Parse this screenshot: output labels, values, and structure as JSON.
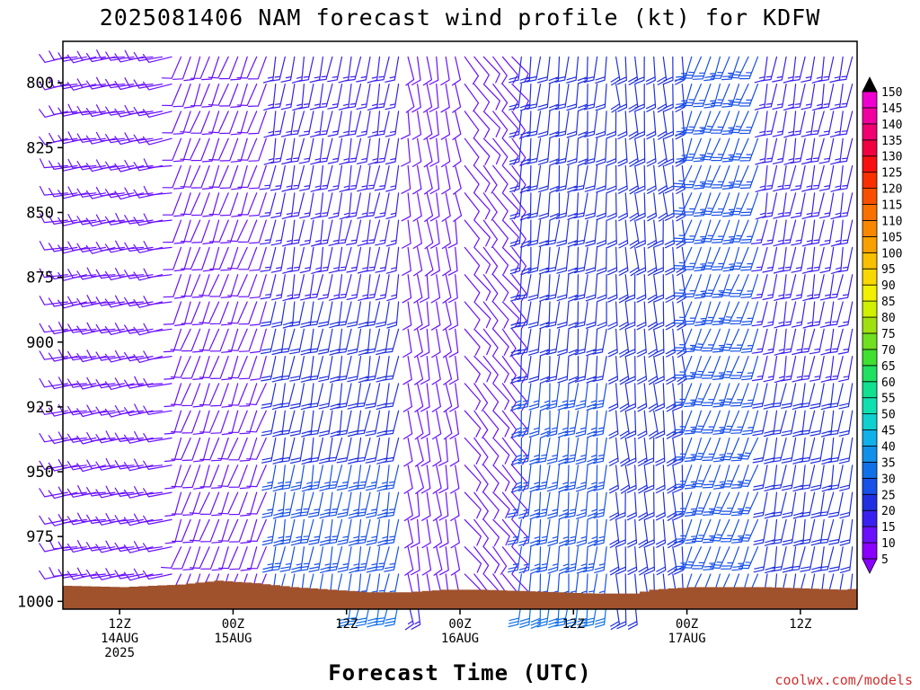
{
  "chart_data": {
    "type": "wind-barb-profile",
    "title": "2025081406 NAM forecast wind profile (kt) for KDFW",
    "xlabel": "Forecast Time (UTC)",
    "credit": "coolwx.com/models",
    "units": "kt",
    "y_axis": {
      "label": "",
      "reversed": true,
      "ticks": [
        800,
        825,
        850,
        875,
        900,
        925,
        950,
        975,
        1000
      ],
      "range": [
        784,
        1003
      ]
    },
    "x_axis": {
      "range_hours": [
        0,
        84
      ],
      "ticks": [
        {
          "hour": 6,
          "labels": [
            "12Z",
            "14AUG",
            "2025"
          ]
        },
        {
          "hour": 18,
          "labels": [
            "00Z",
            "15AUG"
          ]
        },
        {
          "hour": 30,
          "labels": [
            "12Z"
          ]
        },
        {
          "hour": 42,
          "labels": [
            "00Z",
            "16AUG"
          ]
        },
        {
          "hour": 54,
          "labels": [
            "12Z"
          ]
        },
        {
          "hour": 66,
          "labels": [
            "00Z",
            "17AUG"
          ]
        },
        {
          "hour": 78,
          "labels": [
            "12Z"
          ]
        }
      ]
    },
    "colorbar": {
      "levels": [
        5,
        10,
        15,
        20,
        25,
        30,
        35,
        40,
        45,
        50,
        55,
        60,
        65,
        70,
        75,
        80,
        85,
        90,
        95,
        100,
        105,
        110,
        115,
        120,
        125,
        130,
        135,
        140,
        145,
        150
      ],
      "colors": [
        "#8a00ff",
        "#6a10ff",
        "#3a20f0",
        "#2030e0",
        "#1850e8",
        "#1070e8",
        "#1090e8",
        "#10b0e8",
        "#10d0d0",
        "#10e0b0",
        "#10e090",
        "#20e060",
        "#40e030",
        "#70e020",
        "#a0e010",
        "#d0f000",
        "#f0f000",
        "#f8d800",
        "#f8c000",
        "#f8a000",
        "#f88800",
        "#f87000",
        "#f85000",
        "#f83000",
        "#f81010",
        "#f00040",
        "#f00070",
        "#f000a0",
        "#f000d0",
        "#e000ff"
      ],
      "top_color": "#000000"
    },
    "surface_pressure": [
      {
        "hour": 0,
        "p": 994
      },
      {
        "hour": 6,
        "p": 994.5
      },
      {
        "hour": 12,
        "p": 993.5
      },
      {
        "hour": 16,
        "p": 992
      },
      {
        "hour": 20,
        "p": 993
      },
      {
        "hour": 24,
        "p": 994.5
      },
      {
        "hour": 28,
        "p": 995.5
      },
      {
        "hour": 32,
        "p": 996.5
      },
      {
        "hour": 36,
        "p": 996.5
      },
      {
        "hour": 40,
        "p": 995.5
      },
      {
        "hour": 44,
        "p": 995.5
      },
      {
        "hour": 48,
        "p": 996
      },
      {
        "hour": 52,
        "p": 996.5
      },
      {
        "hour": 56,
        "p": 997
      },
      {
        "hour": 60,
        "p": 997
      },
      {
        "hour": 62,
        "p": 995.5
      },
      {
        "hour": 66,
        "p": 994.5
      },
      {
        "hour": 70,
        "p": 994.5
      },
      {
        "hour": 74,
        "p": 994.5
      },
      {
        "hour": 78,
        "p": 995
      },
      {
        "hour": 82,
        "p": 995.5
      },
      {
        "hour": 84,
        "p": 995
      }
    ],
    "wind_regimes": [
      {
        "hour_start": 0,
        "hour_end": 12,
        "dir_deg": 260,
        "speed_low_kt": 15,
        "speed_high_kt": 12
      },
      {
        "hour_start": 12,
        "hour_end": 22,
        "dir_deg": 200,
        "speed_low_kt": 10,
        "speed_high_kt": 10
      },
      {
        "hour_start": 22,
        "hour_end": 36,
        "dir_deg": 190,
        "speed_low_kt": 30,
        "speed_high_kt": 15
      },
      {
        "hour_start": 36,
        "hour_end": 42,
        "dir_deg": 170,
        "speed_low_kt": 15,
        "speed_high_kt": 10
      },
      {
        "hour_start": 42,
        "hour_end": 48,
        "dir_deg": 140,
        "speed_low_kt": 10,
        "speed_high_kt": 10
      },
      {
        "hour_start": 48,
        "hour_end": 58,
        "dir_deg": 185,
        "speed_low_kt": 30,
        "speed_high_kt": 20
      },
      {
        "hour_start": 58,
        "hour_end": 66,
        "dir_deg": 175,
        "speed_low_kt": 20,
        "speed_high_kt": 20
      },
      {
        "hour_start": 66,
        "hour_end": 74,
        "dir_deg": 200,
        "speed_low_kt": 25,
        "speed_high_kt": 25
      },
      {
        "hour_start": 74,
        "hour_end": 84,
        "dir_deg": 190,
        "speed_low_kt": 25,
        "speed_high_kt": 15
      }
    ],
    "colors": {
      "ground": "#a0522d",
      "frame": "#000000",
      "credit": "#d03030"
    }
  }
}
